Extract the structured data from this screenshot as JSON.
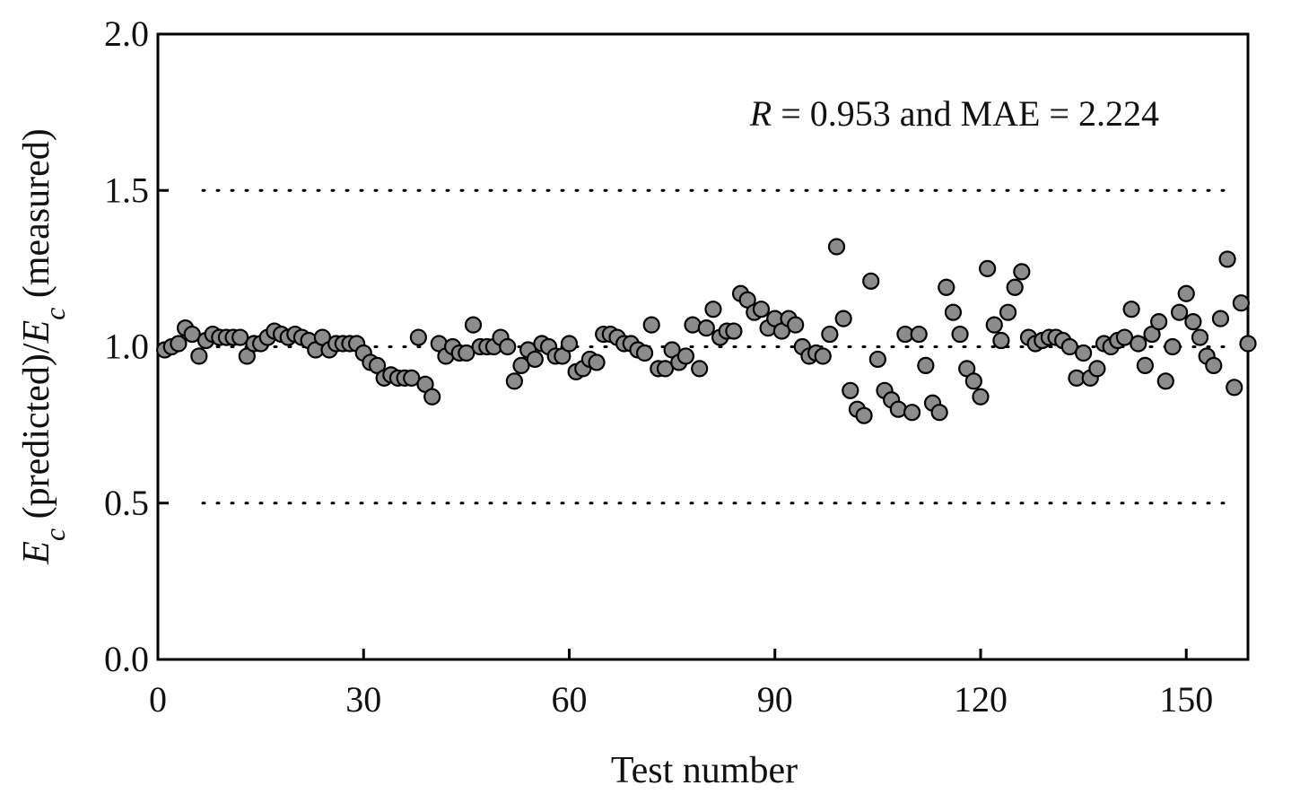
{
  "chart_data": {
    "type": "scatter",
    "title": "",
    "xlabel": "Test number",
    "ylabel": {
      "parts": [
        {
          "text": "E",
          "italic": true,
          "sub": false
        },
        {
          "text": "c",
          "italic": true,
          "sub": true
        },
        {
          "text": " (predicted)/",
          "italic": false,
          "sub": false
        },
        {
          "text": "E",
          "italic": true,
          "sub": false
        },
        {
          "text": "c",
          "italic": true,
          "sub": true
        },
        {
          "text": " (measured)",
          "italic": false,
          "sub": false
        }
      ]
    },
    "xlim": [
      0,
      159
    ],
    "ylim": [
      0.0,
      2.0
    ],
    "xticks": [
      0,
      30,
      60,
      90,
      120,
      150
    ],
    "xtick_labels": [
      "0",
      "30",
      "60",
      "90",
      "120",
      "150"
    ],
    "yticks": [
      0.0,
      0.5,
      1.0,
      1.5,
      2.0
    ],
    "ytick_labels": [
      "0.0",
      "0.5",
      "1.0",
      "1.5",
      "2.0"
    ],
    "reference_lines": [
      0.5,
      1.0,
      1.5
    ],
    "reference_line_style": "dotted",
    "grid": false,
    "marker_fill": "#8c8c8c",
    "marker_edge": "#000000",
    "annotation": {
      "r_symbol": "R",
      "r_value": " = 0.953 and MAE = 2.224"
    },
    "series": [
      {
        "x": [
          1,
          2,
          3,
          4,
          5,
          6,
          7,
          8,
          9,
          10,
          11,
          12,
          13,
          14,
          15,
          16,
          17,
          18,
          19,
          20,
          21,
          22,
          23,
          24,
          25,
          26,
          27,
          28,
          29,
          30,
          31,
          32,
          33,
          34,
          35,
          36,
          37,
          38,
          39,
          40,
          41,
          42,
          43,
          44,
          45,
          46,
          47,
          48,
          49,
          50,
          51,
          52,
          53,
          54,
          55,
          56,
          57,
          58,
          59,
          60,
          61,
          62,
          63,
          64,
          65,
          66,
          67,
          68,
          69,
          70,
          71,
          72,
          73,
          74,
          75,
          76,
          77,
          78,
          79,
          80,
          81,
          82,
          83,
          84,
          85,
          86,
          87,
          88,
          89,
          90,
          91,
          92,
          93,
          94,
          95,
          96,
          97,
          98,
          99,
          100,
          101,
          102,
          103,
          104,
          105,
          106,
          107,
          108,
          109,
          110,
          111,
          112,
          113,
          114,
          115,
          116,
          117,
          118,
          119,
          120,
          121,
          122,
          123,
          124,
          125,
          126,
          127,
          128,
          129,
          130,
          131,
          132,
          133,
          134,
          135,
          136,
          137,
          138,
          139,
          140,
          141,
          142,
          143,
          144,
          145,
          146,
          147,
          148,
          149,
          150,
          151,
          152,
          153,
          154,
          155,
          156,
          157,
          158,
          159
        ],
        "y": [
          0.99,
          1.0,
          1.01,
          1.06,
          1.04,
          0.97,
          1.02,
          1.04,
          1.03,
          1.03,
          1.03,
          1.03,
          0.97,
          1.01,
          1.01,
          1.03,
          1.05,
          1.04,
          1.03,
          1.04,
          1.03,
          1.02,
          0.99,
          1.03,
          0.99,
          1.01,
          1.01,
          1.01,
          1.01,
          0.98,
          0.95,
          0.94,
          0.9,
          0.91,
          0.9,
          0.9,
          0.9,
          1.03,
          0.88,
          0.84,
          1.01,
          0.97,
          1.0,
          0.98,
          0.98,
          1.07,
          1.0,
          1.0,
          1.0,
          1.03,
          1.0,
          0.89,
          0.94,
          0.99,
          0.96,
          1.01,
          1.0,
          0.97,
          0.97,
          1.01,
          0.92,
          0.93,
          0.96,
          0.95,
          1.04,
          1.04,
          1.03,
          1.01,
          1.01,
          0.99,
          0.98,
          1.07,
          0.93,
          0.93,
          0.99,
          0.95,
          0.97,
          1.07,
          0.93,
          1.06,
          1.12,
          1.03,
          1.05,
          1.05,
          1.17,
          1.15,
          1.11,
          1.12,
          1.06,
          1.09,
          1.05,
          1.09,
          1.07,
          1.0,
          0.97,
          0.98,
          0.97,
          1.04,
          1.32,
          1.09,
          0.86,
          0.8,
          0.78,
          1.21,
          0.96,
          0.86,
          0.83,
          0.8,
          1.04,
          0.79,
          1.04,
          0.94,
          0.82,
          0.79,
          1.19,
          1.11,
          1.04,
          0.93,
          0.89,
          0.84,
          1.25,
          1.07,
          1.02,
          1.11,
          1.19,
          1.24,
          1.03,
          1.01,
          1.02,
          1.03,
          1.03,
          1.02,
          1.0,
          0.9,
          0.98,
          0.9,
          0.93,
          1.01,
          1.0,
          1.02,
          1.03,
          1.12,
          1.01,
          0.94,
          1.04,
          1.08,
          0.89,
          1.0,
          1.11,
          1.17,
          1.08,
          1.03,
          0.97,
          0.94,
          1.09,
          1.28,
          0.87,
          1.14,
          1.01
        ]
      }
    ]
  }
}
